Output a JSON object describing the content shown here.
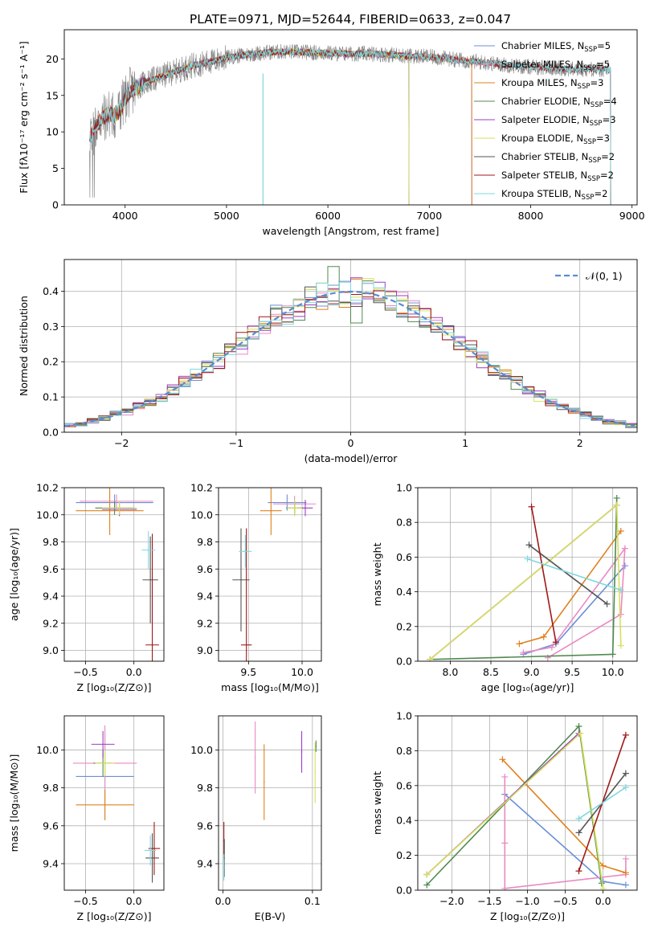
{
  "figure_title": "PLATE=0971, MJD=52644, FIBERID=0633, z=0.047",
  "colors": {
    "chabrier_miles": "#6b8fd6",
    "salpeter_miles": "#e98ac3",
    "kroupa_miles": "#e0801e",
    "chabrier_elodie": "#4f8a4f",
    "salpeter_elodie": "#9a3fc2",
    "kroupa_elodie": "#d6e05a",
    "chabrier_stelib": "#555555",
    "salpeter_stelib": "#a01818",
    "kroupa_stelib": "#7fd8de",
    "data_gray": "#808080",
    "gaussian": "#5b8bd0",
    "grid": "#b0b0b0"
  },
  "chart_data": [
    {
      "id": "spectrum",
      "type": "line",
      "xlabel": "wavelength [Angstrom, rest frame]",
      "ylabel": "Flux [fλ10⁻¹⁷ erg cm⁻² s⁻¹ A⁻¹]",
      "xlim": [
        3400,
        9050
      ],
      "ylim": [
        0,
        24
      ],
      "xticks": [
        4000,
        5000,
        6000,
        7000,
        8000,
        9000
      ],
      "yticks": [
        0,
        5,
        10,
        15,
        20
      ],
      "grid": false,
      "legend_position": "right",
      "continuum": {
        "x": [
          3650,
          3700,
          3750,
          3800,
          3850,
          3900,
          3950,
          4000,
          4050,
          4100,
          4200,
          4300,
          4400,
          4500,
          4600,
          4700,
          4800,
          4900,
          5000,
          5200,
          5400,
          5600,
          5800,
          6000,
          6200,
          6400,
          6600,
          6800,
          7000,
          7200,
          7400,
          7600,
          7800,
          8000,
          8200,
          8400,
          8600,
          8790
        ],
        "y": [
          9.0,
          10.5,
          11.5,
          12.0,
          12.5,
          12.2,
          13.0,
          14.5,
          15.5,
          16.0,
          16.8,
          17.3,
          17.8,
          18.3,
          18.8,
          19.2,
          19.5,
          19.8,
          20.2,
          20.6,
          20.9,
          21.0,
          20.9,
          20.8,
          20.7,
          20.7,
          20.6,
          20.4,
          20.3,
          20.0,
          19.7,
          19.4,
          19.1,
          18.9,
          18.8,
          18.6,
          18.6,
          18.5
        ]
      },
      "series": [
        {
          "name": "Chabrier MILES, N_SSP=5",
          "label_main": "Chabrier MILES, N",
          "label_sub": "SSP",
          "label_end": "=5",
          "color_key": "chabrier_miles",
          "xrange": [
            3650,
            7420
          ]
        },
        {
          "name": "Salpeter MILES, N_SSP=5",
          "label_main": "Salpeter MILES, N",
          "label_sub": "SSP",
          "label_end": "=5",
          "color_key": "salpeter_miles",
          "xrange": [
            3650,
            7420
          ]
        },
        {
          "name": "Kroupa MILES, N_SSP=3",
          "label_main": "Kroupa MILES, N",
          "label_sub": "SSP",
          "label_end": "=3",
          "color_key": "kroupa_miles",
          "xrange": [
            3650,
            7420
          ]
        },
        {
          "name": "Chabrier ELODIE, N_SSP=4",
          "label_main": "Chabrier ELODIE, N",
          "label_sub": "SSP",
          "label_end": "=4",
          "color_key": "chabrier_elodie",
          "xrange": [
            3900,
            6800
          ]
        },
        {
          "name": "Salpeter ELODIE, N_SSP=3",
          "label_main": "Salpeter ELODIE, N",
          "label_sub": "SSP",
          "label_end": "=3",
          "color_key": "salpeter_elodie",
          "xrange": [
            3900,
            6800
          ]
        },
        {
          "name": "Kroupa ELODIE, N_SSP=3",
          "label_main": "Kroupa ELODIE, N",
          "label_sub": "SSP",
          "label_end": "=3",
          "color_key": "kroupa_elodie",
          "xrange": [
            3900,
            6800
          ]
        },
        {
          "name": "Chabrier STELIB, N_SSP=2",
          "label_main": "Chabrier STELIB, N",
          "label_sub": "SSP",
          "label_end": "=2",
          "color_key": "chabrier_stelib",
          "xrange": [
            3650,
            8790
          ]
        },
        {
          "name": "Salpeter STELIB, N_SSP=2",
          "label_main": "Salpeter STELIB, N",
          "label_sub": "SSP",
          "label_end": "=2",
          "color_key": "salpeter_stelib",
          "xrange": [
            3650,
            8790
          ]
        },
        {
          "name": "Kroupa STELIB, N_SSP=2",
          "label_main": "Kroupa STELIB, N",
          "label_sub": "SSP",
          "label_end": "=2",
          "color_key": "kroupa_stelib",
          "xrange": [
            3650,
            8790
          ]
        }
      ]
    },
    {
      "id": "residuals",
      "type": "histogram",
      "xlabel": "(data-model)/error",
      "ylabel": "Normed distribution",
      "xlim": [
        -2.5,
        2.5
      ],
      "ylim": [
        0,
        0.49
      ],
      "xticks": [
        -2,
        -1,
        0,
        1,
        2
      ],
      "yticks": [
        0.0,
        0.1,
        0.2,
        0.3,
        0.4
      ],
      "grid": true,
      "legend_position": "top-right",
      "legend_label": "𝒩(0, 1)",
      "bin_width": 0.1,
      "bins_from": -2.5
    },
    {
      "id": "age_vs_Z",
      "type": "scatter",
      "xlabel": "Z [log₁₀(Z/Z⊙)]",
      "ylabel": "age  [log₁₀(age/yr)]",
      "xlim": [
        -0.72,
        0.31
      ],
      "ylim": [
        8.92,
        10.2
      ],
      "xticks": [
        -0.5,
        0.0
      ],
      "yticks": [
        9.0,
        9.2,
        9.4,
        9.6,
        9.8,
        10.0,
        10.2
      ],
      "grid": true,
      "points": [
        {
          "color_key": "chabrier_miles",
          "x": -0.2,
          "y": 10.09,
          "xerr": 0.4,
          "yerr": 0.06
        },
        {
          "color_key": "salpeter_miles",
          "x": -0.18,
          "y": 10.1,
          "xerr": 0.38,
          "yerr": 0.05
        },
        {
          "color_key": "kroupa_miles",
          "x": -0.25,
          "y": 10.03,
          "xerr": 0.35,
          "yerr": 0.18
        },
        {
          "color_key": "chabrier_elodie",
          "x": -0.2,
          "y": 10.05,
          "xerr": 0.2,
          "yerr": 0.05
        },
        {
          "color_key": "salpeter_elodie",
          "x": -0.15,
          "y": 10.04,
          "xerr": 0.18,
          "yerr": 0.05
        },
        {
          "color_key": "kroupa_elodie",
          "x": -0.15,
          "y": 10.05,
          "xerr": 0.18,
          "yerr": 0.05
        },
        {
          "color_key": "chabrier_stelib",
          "x": 0.17,
          "y": 9.52,
          "xerr": 0.08,
          "yerr": 0.32
        },
        {
          "color_key": "salpeter_stelib",
          "x": 0.19,
          "y": 9.04,
          "xerr": 0.07,
          "yerr": 0.82
        },
        {
          "color_key": "kroupa_stelib",
          "x": 0.15,
          "y": 9.74,
          "xerr": 0.07,
          "yerr": 0.14
        }
      ]
    },
    {
      "id": "age_vs_mass",
      "type": "scatter",
      "xlabel": "mass [log₁₀(M/M⊙)]",
      "ylabel": "",
      "xlim": [
        9.22,
        10.18
      ],
      "ylim": [
        8.92,
        10.2
      ],
      "xticks": [
        9.5,
        10.0
      ],
      "yticks": [
        9.0,
        9.2,
        9.4,
        9.6,
        9.8,
        10.0,
        10.2
      ],
      "grid": true,
      "points": [
        {
          "color_key": "chabrier_miles",
          "x": 9.86,
          "y": 10.09,
          "xerr": 0.18,
          "yerr": 0.06
        },
        {
          "color_key": "salpeter_miles",
          "x": 9.93,
          "y": 10.08,
          "xerr": 0.2,
          "yerr": 0.06
        },
        {
          "color_key": "kroupa_miles",
          "x": 9.71,
          "y": 10.03,
          "xerr": 0.1,
          "yerr": 0.18
        },
        {
          "color_key": "chabrier_elodie",
          "x": 9.93,
          "y": 10.05,
          "xerr": 0.08,
          "yerr": 0.05
        },
        {
          "color_key": "salpeter_elodie",
          "x": 10.03,
          "y": 10.05,
          "xerr": 0.07,
          "yerr": 0.06
        },
        {
          "color_key": "kroupa_elodie",
          "x": 9.93,
          "y": 10.05,
          "xerr": 0.07,
          "yerr": 0.06
        },
        {
          "color_key": "chabrier_stelib",
          "x": 9.43,
          "y": 9.52,
          "xerr": 0.08,
          "yerr": 0.38
        },
        {
          "color_key": "salpeter_stelib",
          "x": 9.48,
          "y": 9.04,
          "xerr": 0.05,
          "yerr": 0.86
        },
        {
          "color_key": "kroupa_stelib",
          "x": 9.47,
          "y": 9.73,
          "xerr": 0.06,
          "yerr": 0.12
        }
      ]
    },
    {
      "id": "weight_vs_age",
      "type": "line",
      "xlabel": "age  [log₁₀(age/yr)]",
      "ylabel": "mass weight",
      "xlim": [
        7.6,
        10.3
      ],
      "ylim": [
        0,
        1.0
      ],
      "xticks": [
        8.0,
        8.5,
        9.0,
        9.5,
        10.0
      ],
      "yticks": [
        0.0,
        0.2,
        0.4,
        0.6,
        0.8,
        1.0
      ],
      "grid": true,
      "series": [
        {
          "color_key": "chabrier_miles",
          "x": [
            8.9,
            9.3,
            10.15
          ],
          "y": [
            0.04,
            0.1,
            0.55
          ]
        },
        {
          "color_key": "salpeter_miles",
          "x": [
            8.9,
            9.25,
            10.15,
            10.1,
            9.2
          ],
          "y": [
            0.05,
            0.08,
            0.65,
            0.27,
            0.02
          ]
        },
        {
          "color_key": "kroupa_miles",
          "x": [
            8.85,
            9.15,
            10.1
          ],
          "y": [
            0.1,
            0.14,
            0.75
          ]
        },
        {
          "color_key": "chabrier_elodie",
          "x": [
            7.75,
            10.0,
            10.05
          ],
          "y": [
            0.01,
            0.04,
            0.94
          ]
        },
        {
          "color_key": "salpeter_elodie",
          "x": [
            7.75,
            10.05
          ],
          "y": [
            0.01,
            0.9
          ]
        },
        {
          "color_key": "kroupa_elodie",
          "x": [
            7.75,
            10.05,
            10.1
          ],
          "y": [
            0.01,
            0.9,
            0.09
          ]
        },
        {
          "color_key": "chabrier_stelib",
          "x": [
            8.97,
            9.93
          ],
          "y": [
            0.67,
            0.33
          ]
        },
        {
          "color_key": "salpeter_stelib",
          "x": [
            9.0,
            9.3
          ],
          "y": [
            0.89,
            0.11
          ]
        },
        {
          "color_key": "kroupa_stelib",
          "x": [
            8.95,
            10.1
          ],
          "y": [
            0.59,
            0.41
          ]
        }
      ]
    },
    {
      "id": "mass_vs_Z",
      "type": "scatter",
      "xlabel": "Z [log₁₀(Z/Z⊙)]",
      "ylabel": "mass [log₁₀(M/M⊙)]",
      "xlim": [
        -0.72,
        0.31
      ],
      "ylim": [
        9.26,
        10.18
      ],
      "xticks": [
        -0.5,
        0.0
      ],
      "yticks": [
        9.4,
        9.6,
        9.8,
        10.0
      ],
      "grid": true,
      "points": [
        {
          "color_key": "chabrier_miles",
          "x": -0.3,
          "y": 9.86,
          "xerr": 0.3,
          "yerr": 0.23
        },
        {
          "color_key": "salpeter_miles",
          "x": -0.3,
          "y": 9.93,
          "xerr": 0.33,
          "yerr": 0.2
        },
        {
          "color_key": "kroupa_miles",
          "x": -0.3,
          "y": 9.71,
          "xerr": 0.3,
          "yerr": 0.08
        },
        {
          "color_key": "chabrier_elodie",
          "x": -0.32,
          "y": 9.93,
          "xerr": 0.1,
          "yerr": 0.07
        },
        {
          "color_key": "salpeter_elodie",
          "x": -0.32,
          "y": 10.03,
          "xerr": 0.12,
          "yerr": 0.07
        },
        {
          "color_key": "kroupa_elodie",
          "x": -0.3,
          "y": 9.93,
          "xerr": 0.1,
          "yerr": 0.07
        },
        {
          "color_key": "chabrier_stelib",
          "x": 0.19,
          "y": 9.43,
          "xerr": 0.07,
          "yerr": 0.13
        },
        {
          "color_key": "salpeter_stelib",
          "x": 0.21,
          "y": 9.48,
          "xerr": 0.06,
          "yerr": 0.14
        },
        {
          "color_key": "kroupa_stelib",
          "x": 0.17,
          "y": 9.47,
          "xerr": 0.06,
          "yerr": 0.08
        }
      ]
    },
    {
      "id": "mass_vs_EBV",
      "type": "scatter",
      "xlabel": "E(B-V)",
      "ylabel": "",
      "xlim": [
        -0.005,
        0.11
      ],
      "ylim": [
        9.26,
        10.18
      ],
      "xticks": [
        0.0,
        0.1
      ],
      "yticks": [
        9.4,
        9.6,
        9.8,
        10.0
      ],
      "grid": true,
      "points": [
        {
          "color_key": "salpeter_miles",
          "x": 0.036,
          "y": 9.96,
          "xerr": 0,
          "yerr": 0.19
        },
        {
          "color_key": "kroupa_miles",
          "x": 0.046,
          "y": 9.83,
          "xerr": 0,
          "yerr": 0.2
        },
        {
          "color_key": "salpeter_elodie",
          "x": 0.088,
          "y": 9.99,
          "xerr": 0,
          "yerr": 0.11
        },
        {
          "color_key": "kroupa_elodie",
          "x": 0.103,
          "y": 9.88,
          "xerr": 0,
          "yerr": 0.16
        },
        {
          "color_key": "chabrier_elodie",
          "x": 0.104,
          "y": 10.02,
          "xerr": 0,
          "yerr": 0.03
        },
        {
          "color_key": "salpeter_stelib",
          "x": 0.001,
          "y": 9.52,
          "xerr": 0,
          "yerr": 0.1
        },
        {
          "color_key": "chabrier_stelib",
          "x": 0.0015,
          "y": 9.43,
          "xerr": 0,
          "yerr": 0.1
        },
        {
          "color_key": "kroupa_stelib",
          "x": 0.001,
          "y": 9.38,
          "xerr": 0,
          "yerr": 0.07
        }
      ]
    },
    {
      "id": "weight_vs_Z",
      "type": "line",
      "xlabel": "Z [log₁₀(Z/Z⊙)]",
      "ylabel": "mass weight",
      "xlim": [
        -2.45,
        0.45
      ],
      "ylim": [
        0,
        1.0
      ],
      "xticks": [
        -2.0,
        -1.5,
        -1.0,
        -0.5,
        0.0
      ],
      "yticks": [
        0.0,
        0.2,
        0.4,
        0.6,
        0.8,
        1.0
      ],
      "grid": true,
      "series": [
        {
          "color_key": "chabrier_miles",
          "x": [
            -1.3,
            0.0,
            0.3
          ],
          "y": [
            0.55,
            0.05,
            0.03
          ]
        },
        {
          "color_key": "salpeter_miles",
          "x": [
            -1.3,
            -1.3,
            -1.3,
            0.3,
            0.3
          ],
          "y": [
            0.65,
            0.27,
            0.01,
            0.09,
            0.18
          ]
        },
        {
          "color_key": "kroupa_miles",
          "x": [
            -1.33,
            0.0,
            0.3
          ],
          "y": [
            0.75,
            0.14,
            0.1
          ]
        },
        {
          "color_key": "chabrier_elodie",
          "x": [
            -2.33,
            -0.32,
            -0.02
          ],
          "y": [
            0.03,
            0.94,
            0.04
          ]
        },
        {
          "color_key": "salpeter_elodie",
          "x": [
            -2.33,
            -0.32
          ],
          "y": [
            0.09,
            0.9
          ]
        },
        {
          "color_key": "kroupa_elodie",
          "x": [
            -2.33,
            -0.3,
            0.0
          ],
          "y": [
            0.09,
            0.9,
            0.01
          ]
        },
        {
          "color_key": "chabrier_stelib",
          "x": [
            -0.32,
            0.3
          ],
          "y": [
            0.33,
            0.67
          ]
        },
        {
          "color_key": "salpeter_stelib",
          "x": [
            -0.32,
            0.3
          ],
          "y": [
            0.11,
            0.89
          ]
        },
        {
          "color_key": "kroupa_stelib",
          "x": [
            -0.32,
            0.3
          ],
          "y": [
            0.41,
            0.59
          ]
        }
      ]
    }
  ]
}
